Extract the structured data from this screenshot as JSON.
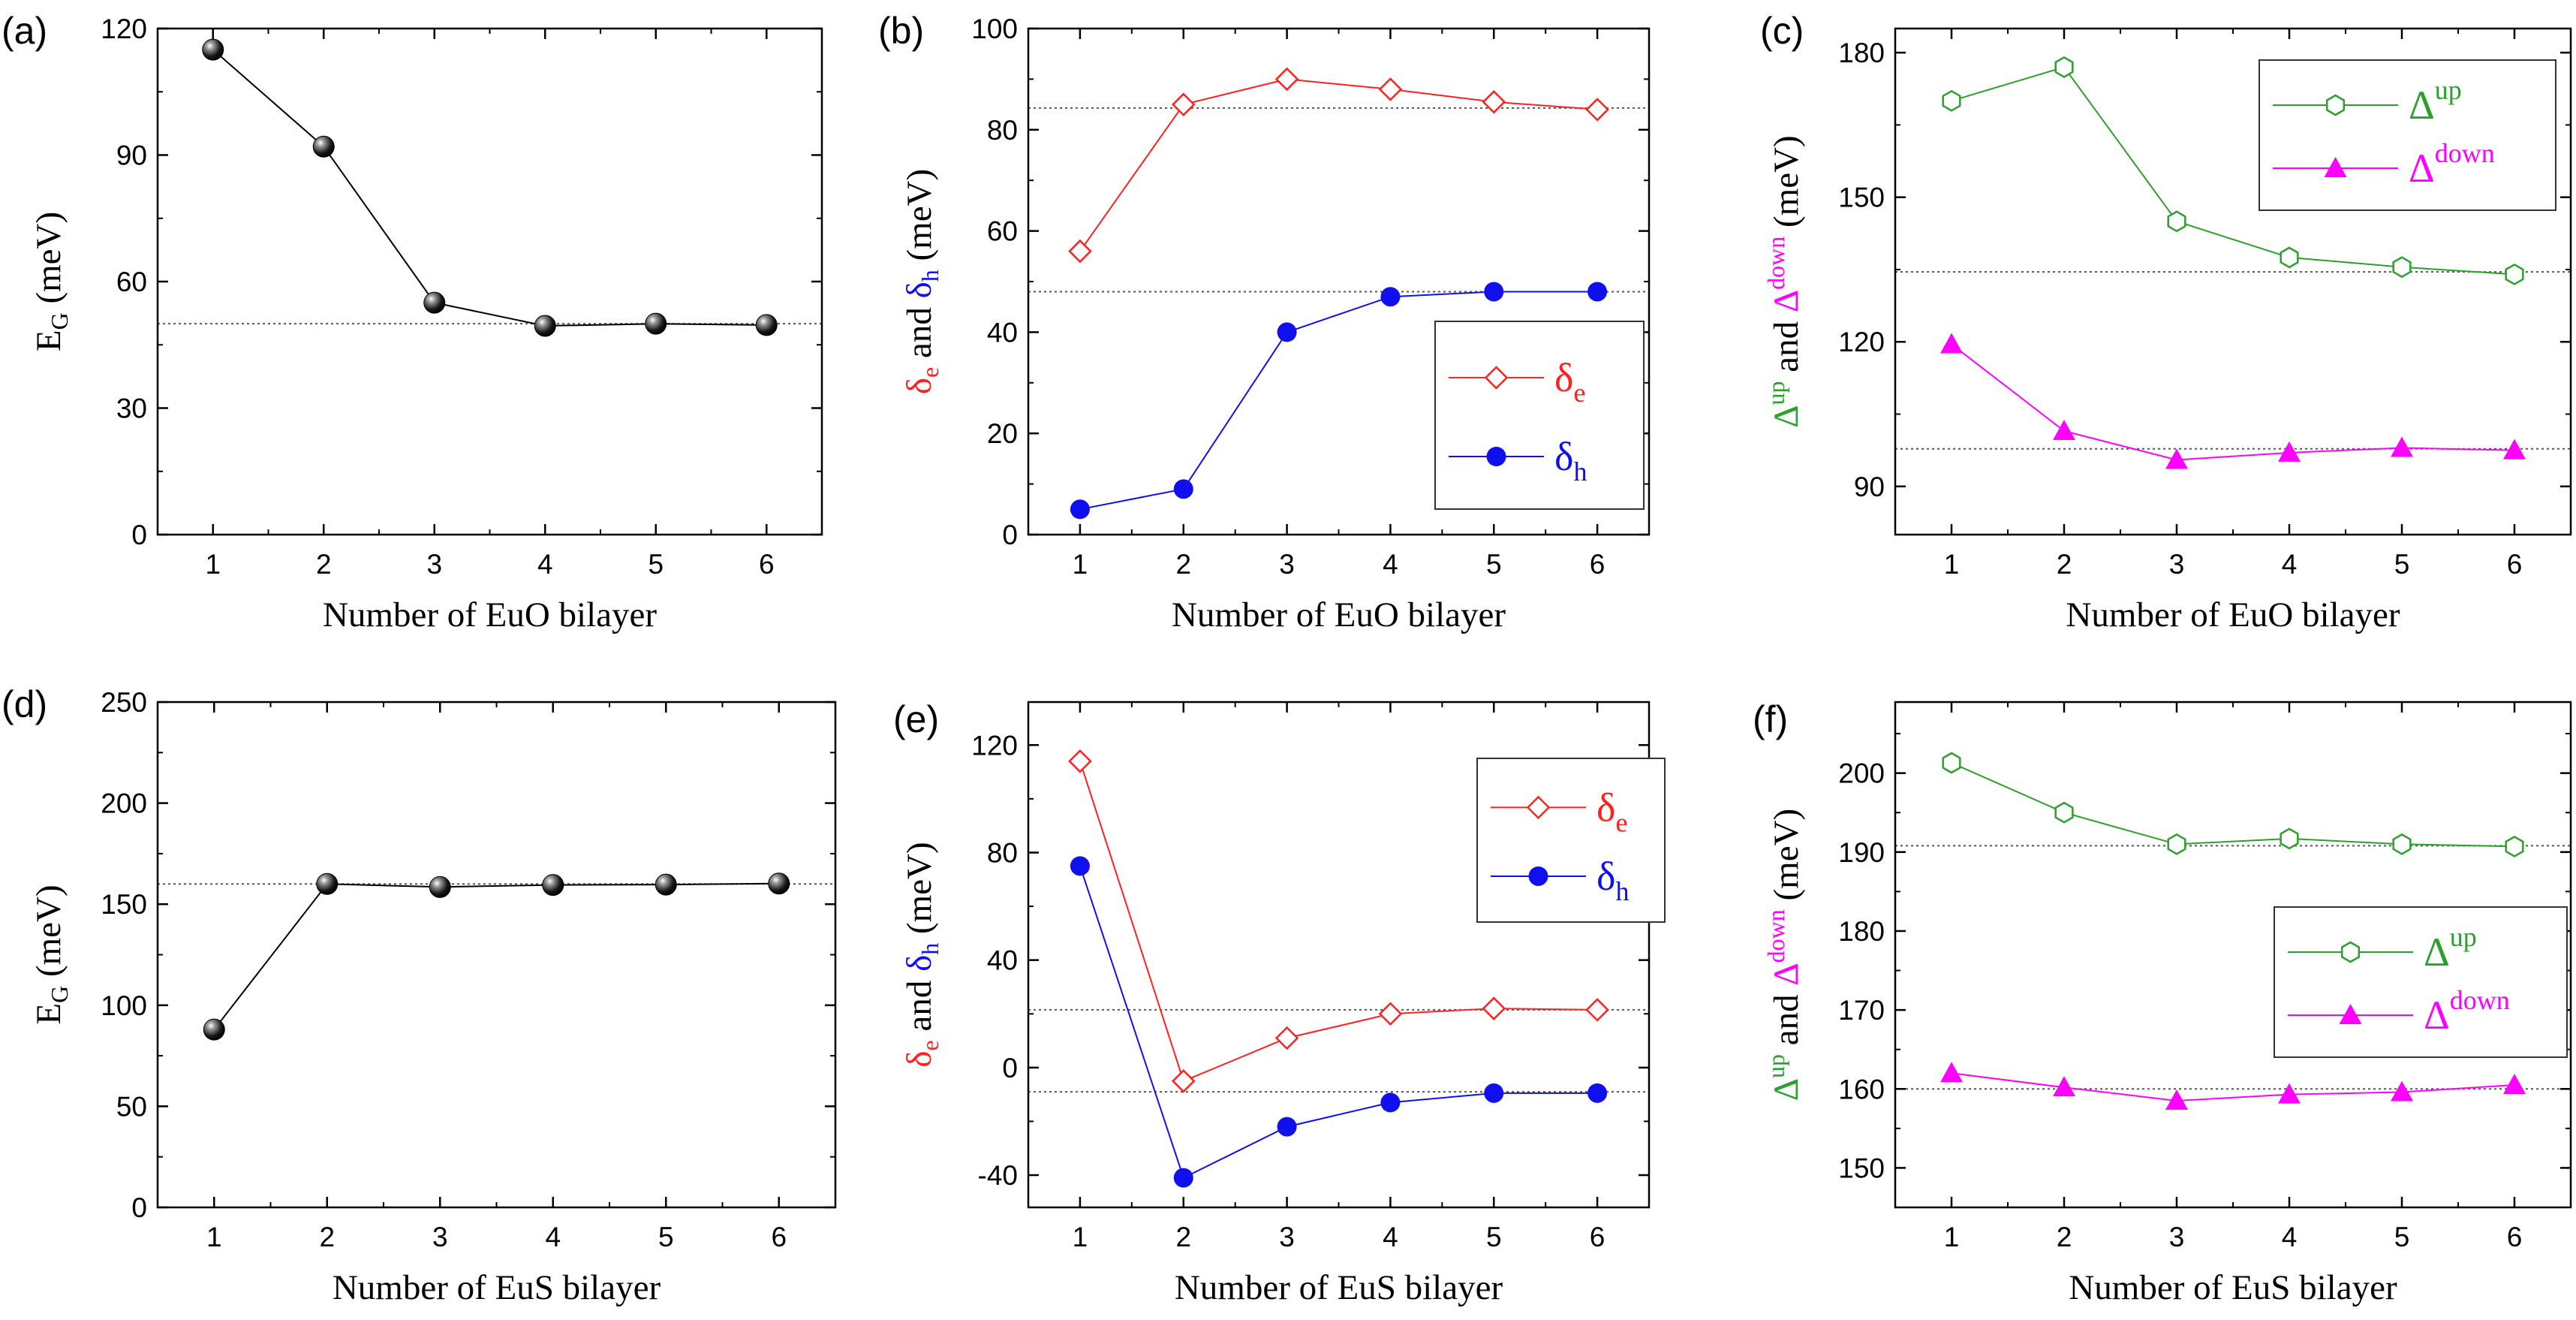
{
  "chart_data": [
    {
      "panel": "(a)",
      "type": "line",
      "x": [
        1,
        2,
        3,
        4,
        5,
        6
      ],
      "series": [
        {
          "name": "E_G",
          "values": [
            115,
            92,
            55,
            49.5,
            50,
            49.7
          ],
          "color": "#000000",
          "marker": "ball"
        }
      ],
      "xlabel": "Number of EuO bilayer",
      "ylabel": {
        "base": "E",
        "sub": "G",
        "rest": " (meV)"
      },
      "xlim": [
        0.5,
        6.5
      ],
      "ylim": [
        0,
        120
      ],
      "xticks": [
        "1",
        "2",
        "3",
        "4",
        "5",
        "6"
      ],
      "yticks": [
        "0",
        "30",
        "60",
        "90",
        "120"
      ],
      "reference_lines": [
        50
      ]
    },
    {
      "panel": "(b)",
      "type": "line",
      "x": [
        1,
        2,
        3,
        4,
        5,
        6
      ],
      "series": [
        {
          "name": "δe",
          "values": [
            56,
            85,
            90,
            88,
            85.5,
            84
          ],
          "color": "#ff2020",
          "marker": "diamond-open"
        },
        {
          "name": "δh",
          "values": [
            5,
            9,
            40,
            47,
            48,
            48
          ],
          "color": "#1010ee",
          "marker": "circle-filled"
        }
      ],
      "xlabel": "Number of EuO bilayer",
      "ylabel": {
        "p1": "δ",
        "p1sub": "e",
        "mid": " and ",
        "p2": "δ",
        "p2sub": "h",
        "rest": " (meV)"
      },
      "xlim": [
        0.5,
        6.5
      ],
      "ylim": [
        0,
        100
      ],
      "xticks": [
        "1",
        "2",
        "3",
        "4",
        "5",
        "6"
      ],
      "yticks": [
        "0",
        "20",
        "40",
        "60",
        "80",
        "100"
      ],
      "reference_lines": [
        84.3,
        48
      ],
      "legend": [
        {
          "symbol": "δ",
          "sub": "e"
        },
        {
          "symbol": "δ",
          "sub": "h"
        }
      ]
    },
    {
      "panel": "(c)",
      "type": "line",
      "x": [
        1,
        2,
        3,
        4,
        5,
        6
      ],
      "series": [
        {
          "name": "Δup",
          "values": [
            170,
            177,
            145,
            137.5,
            135.5,
            134
          ],
          "color": "#2ca02c",
          "marker": "hexagon-open"
        },
        {
          "name": "Δdown",
          "values": [
            119.5,
            101.5,
            95.5,
            97,
            98,
            97.5
          ],
          "color": "#ff00ff",
          "marker": "triangle-filled"
        }
      ],
      "xlabel": "Number of EuO bilayer",
      "ylabel": {
        "p1": "Δ",
        "p1sup": "up",
        "mid": " and ",
        "p2": "Δ",
        "p2sup": "down",
        "rest": " (meV)"
      },
      "xlim": [
        0.5,
        6.5
      ],
      "ylim": [
        80,
        185
      ],
      "xticks": [
        "1",
        "2",
        "3",
        "4",
        "5",
        "6"
      ],
      "yticks": [
        "90",
        "120",
        "150",
        "180"
      ],
      "reference_lines": [
        134.5,
        97.8
      ],
      "legend": [
        {
          "symbol": "Δ",
          "sup": "up"
        },
        {
          "symbol": "Δ",
          "sup": "down"
        }
      ]
    },
    {
      "panel": "(d)",
      "type": "line",
      "x": [
        1,
        2,
        3,
        4,
        5,
        6
      ],
      "series": [
        {
          "name": "E_G",
          "values": [
            88,
            160,
            158.5,
            159.5,
            159.7,
            160.2
          ],
          "color": "#000000",
          "marker": "ball"
        }
      ],
      "xlabel": "Number of EuS bilayer",
      "ylabel": {
        "base": "E",
        "sub": "G",
        "rest": " (meV)"
      },
      "xlim": [
        0.5,
        6.5
      ],
      "ylim": [
        0,
        250
      ],
      "xticks": [
        "1",
        "2",
        "3",
        "4",
        "5",
        "6"
      ],
      "yticks": [
        "0",
        "50",
        "100",
        "150",
        "200",
        "250"
      ],
      "reference_lines": [
        160
      ]
    },
    {
      "panel": "(e)",
      "type": "line",
      "x": [
        1,
        2,
        3,
        4,
        5,
        6
      ],
      "series": [
        {
          "name": "δe",
          "values": [
            114,
            -5,
            11,
            20,
            22,
            21.5
          ],
          "color": "#ff2020",
          "marker": "diamond-open"
        },
        {
          "name": "δh",
          "values": [
            75,
            -41,
            -22,
            -13,
            -9.5,
            -9.5
          ],
          "color": "#1010ee",
          "marker": "circle-filled"
        }
      ],
      "xlabel": "Number of EuS bilayer",
      "ylabel": {
        "p1": "δ",
        "p1sub": "e",
        "mid": " and ",
        "p2": "δ",
        "p2sub": "h",
        "rest": " (meV)"
      },
      "xlim": [
        0.5,
        6.5
      ],
      "ylim": [
        -52,
        136
      ],
      "xticks": [
        "1",
        "2",
        "3",
        "4",
        "5",
        "6"
      ],
      "yticks": [
        "-40",
        "0",
        "40",
        "80",
        "120"
      ],
      "reference_lines": [
        21.5,
        -9
      ],
      "legend": [
        {
          "symbol": "δ",
          "sub": "e"
        },
        {
          "symbol": "δ",
          "sub": "h"
        }
      ]
    },
    {
      "panel": "(f)",
      "type": "line",
      "x": [
        1,
        2,
        3,
        4,
        5,
        6
      ],
      "series": [
        {
          "name": "Δup",
          "values": [
            201.3,
            195,
            191,
            191.7,
            191,
            190.7
          ],
          "color": "#2ca02c",
          "marker": "hexagon-open"
        },
        {
          "name": "Δdown",
          "values": [
            162,
            160.2,
            158.5,
            159.3,
            159.6,
            160.5
          ],
          "color": "#ff00ff",
          "marker": "triangle-filled"
        }
      ],
      "xlabel": "Number of EuS bilayer",
      "ylabel": {
        "p1": "Δ",
        "p1sup": "up",
        "mid": " and ",
        "p2": "Δ",
        "p2sup": "down",
        "rest": " (meV)"
      },
      "xlim": [
        0.5,
        6.5
      ],
      "ylim": [
        145,
        209
      ],
      "xticks": [
        "1",
        "2",
        "3",
        "4",
        "5",
        "6"
      ],
      "yticks": [
        "150",
        "160",
        "170",
        "180",
        "190",
        "200"
      ],
      "reference_lines": [
        190.8,
        160
      ],
      "legend": [
        {
          "symbol": "Δ",
          "sup": "up"
        },
        {
          "symbol": "Δ",
          "sup": "down"
        }
      ]
    }
  ]
}
